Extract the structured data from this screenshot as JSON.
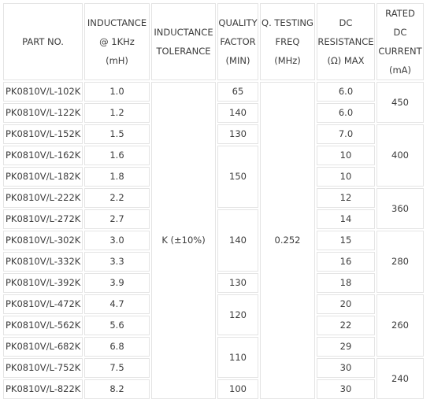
{
  "headers": {
    "part_no": "PART NO.",
    "inductance": [
      "INDUCTANCE",
      "@ 1KHz",
      "(mH)"
    ],
    "tolerance": [
      "INDUCTANCE",
      "TOLERANCE"
    ],
    "quality": [
      "QUALITY",
      "FACTOR",
      "(MIN)"
    ],
    "q_freq": [
      "Q. TESTING",
      "FREQ",
      "(MHz)"
    ],
    "dc_resistance": [
      "DC",
      "RESISTANCE",
      "(Ω) MAX"
    ],
    "rated_current": [
      "RATED",
      "DC",
      "CURRENT",
      "(mA)"
    ]
  },
  "rows": [
    {
      "part": "PK0810V/L-102K",
      "inductance": "1.0",
      "dcr": "6.0"
    },
    {
      "part": "PK0810V/L-122K",
      "inductance": "1.2",
      "dcr": "6.0"
    },
    {
      "part": "PK0810V/L-152K",
      "inductance": "1.5",
      "dcr": "7.0"
    },
    {
      "part": "PK0810V/L-162K",
      "inductance": "1.6",
      "dcr": "10"
    },
    {
      "part": "PK0810V/L-182K",
      "inductance": "1.8",
      "dcr": "10"
    },
    {
      "part": "PK0810V/L-222K",
      "inductance": "2.2",
      "dcr": "12"
    },
    {
      "part": "PK0810V/L-272K",
      "inductance": "2.7",
      "dcr": "14"
    },
    {
      "part": "PK0810V/L-302K",
      "inductance": "3.0",
      "dcr": "15"
    },
    {
      "part": "PK0810V/L-332K",
      "inductance": "3.3",
      "dcr": "16"
    },
    {
      "part": "PK0810V/L-392K",
      "inductance": "3.9",
      "dcr": "18"
    },
    {
      "part": "PK0810V/L-472K",
      "inductance": "4.7",
      "dcr": "20"
    },
    {
      "part": "PK0810V/L-562K",
      "inductance": "5.6",
      "dcr": "22"
    },
    {
      "part": "PK0810V/L-682K",
      "inductance": "6.8",
      "dcr": "29"
    },
    {
      "part": "PK0810V/L-752K",
      "inductance": "7.5",
      "dcr": "30"
    },
    {
      "part": "PK0810V/L-822K",
      "inductance": "8.2",
      "dcr": "30"
    }
  ],
  "tolerance_value": "K (±10%)",
  "q_freq_value": "0.252",
  "quality_groups": [
    "65",
    "140",
    "130",
    "150",
    "140",
    "130",
    "120",
    "110",
    "100"
  ],
  "current_groups": [
    "450",
    "400",
    "360",
    "280",
    "260",
    "240"
  ]
}
